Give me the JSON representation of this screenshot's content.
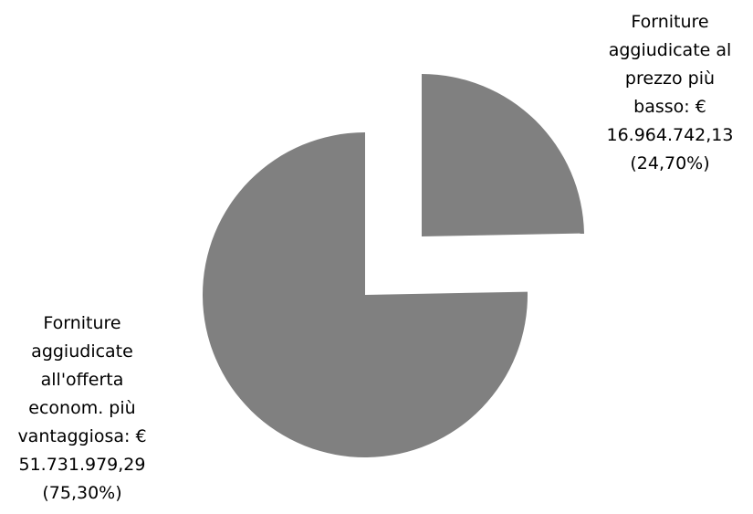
{
  "chart_data": {
    "type": "pie",
    "exploded": true,
    "legend": "none",
    "slices": [
      {
        "label": "Forniture aggiudicate al prezzo più basso",
        "value": 16964742.13,
        "value_text": "€ 16.964.742,13",
        "percent": 24.7,
        "percent_text": "(24,70%)",
        "data_label_lines": [
          "Forniture",
          "aggiudicate al",
          "prezzo più",
          "basso: €",
          "16.964.742,13",
          "(24,70%)"
        ],
        "color": "#808080"
      },
      {
        "label": "Forniture aggiudicate all'offerta econom. più vantaggiosa",
        "value": 51731979.29,
        "value_text": "€ 51.731.979,29",
        "percent": 75.3,
        "percent_text": "(75,30%)",
        "data_label_lines": [
          "Forniture",
          "aggiudicate",
          "all'offerta",
          "econom. più",
          "vantaggiosa: €",
          "51.731.979,29",
          "(75,30%)"
        ],
        "color": "#808080"
      }
    ]
  }
}
